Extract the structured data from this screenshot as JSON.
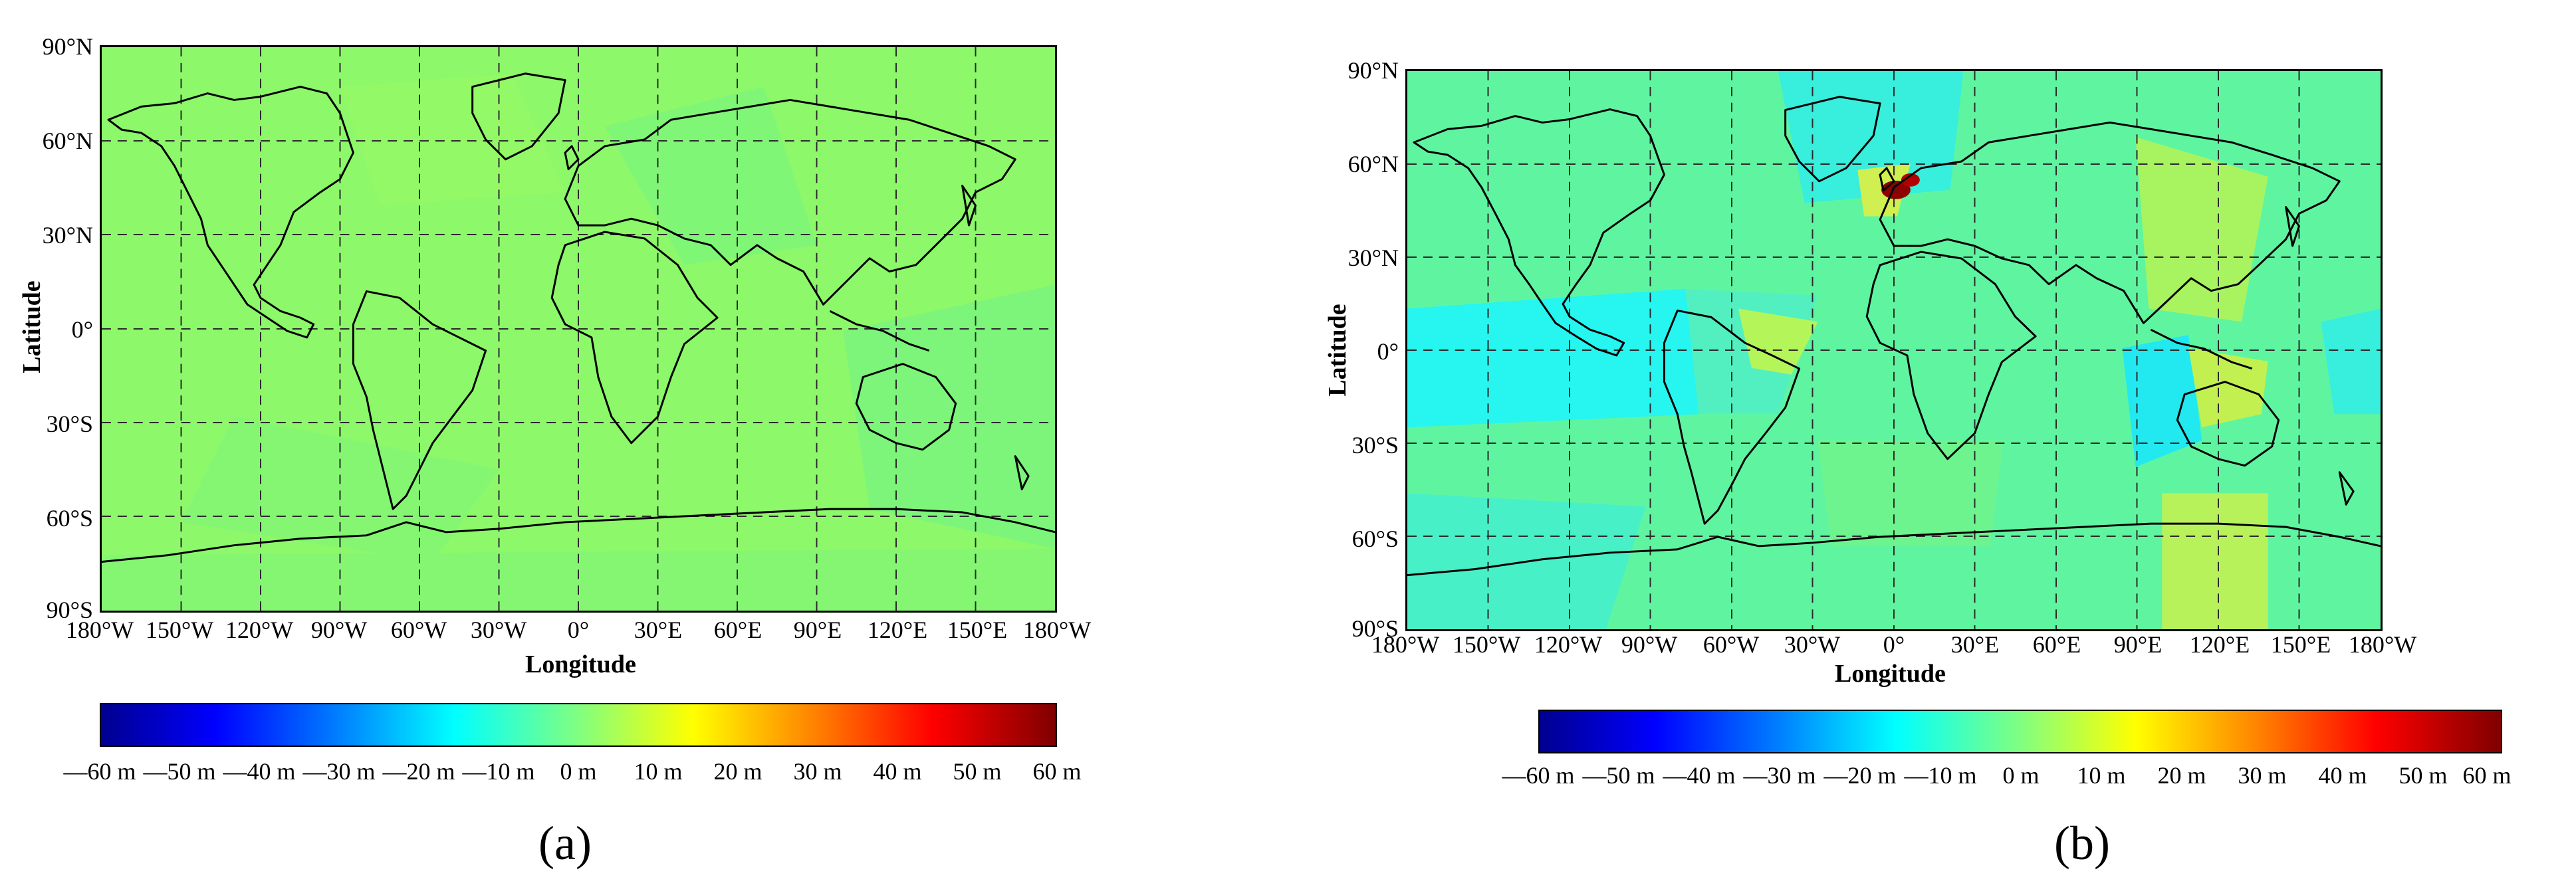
{
  "panels": [
    {
      "tag": "(a)",
      "xlabel": "Longitude",
      "ylabel": "Latitude",
      "lat_ticks": [
        "90°N",
        "60°N",
        "30°N",
        "0°",
        "30°S",
        "60°S",
        "90°S"
      ],
      "lon_ticks": [
        "180°W",
        "150°W",
        "120°W",
        "90°W",
        "60°W",
        "30°W",
        "0°",
        "30°E",
        "60°E",
        "90°E",
        "120°E",
        "150°E",
        "180°W"
      ],
      "colorbar_ticks": [
        "—60 m",
        "—50 m",
        "—40 m",
        "—30 m",
        "—20 m",
        "—10 m",
        "0 m",
        "10 m",
        "20 m",
        "30 m",
        "40 m",
        "50 m",
        "60 m"
      ],
      "background_color": "#8cf86a"
    },
    {
      "tag": "(b)",
      "xlabel": "Longitude",
      "ylabel": "Latitude",
      "lat_ticks": [
        "90°N",
        "60°N",
        "30°N",
        "0°",
        "30°S",
        "60°S",
        "90°S"
      ],
      "lon_ticks": [
        "180°W",
        "150°W",
        "120°W",
        "90°W",
        "60°W",
        "30°W",
        "0°",
        "30°E",
        "60°E",
        "90°E",
        "120°E",
        "150°E",
        "180°W"
      ],
      "colorbar_ticks": [
        "—60 m",
        "—50 m",
        "—40 m",
        "—30 m",
        "—20 m",
        "—10 m",
        "0 m",
        "10 m",
        "20 m",
        "30 m",
        "40 m",
        "50 m",
        "60 m"
      ],
      "background_color": "#5ff5a0"
    }
  ],
  "colorbar_range_m": [
    -60,
    60
  ],
  "colorbar_colormap": "jet"
}
